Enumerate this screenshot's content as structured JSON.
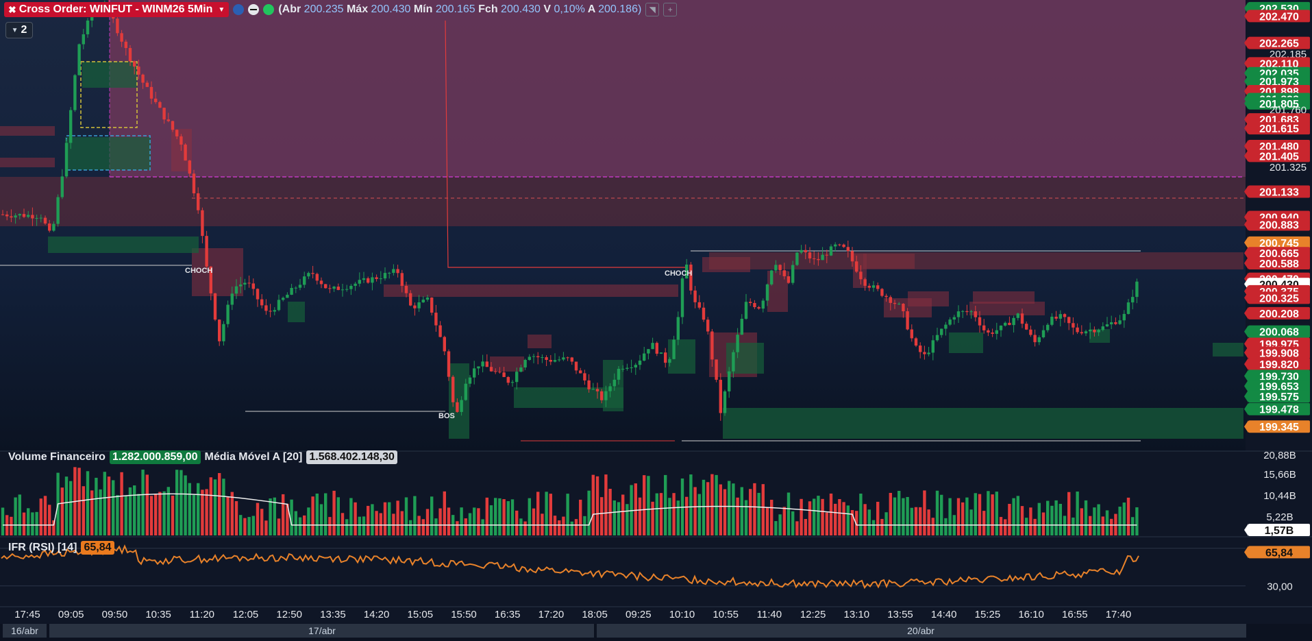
{
  "header": {
    "cross_order_label": "Cross Order: WINFUT - WINM26 5Min",
    "ohlc_text": {
      "abr_label": "(Abr",
      "abr": "200.235",
      "max_label": "Máx",
      "max": "200.430",
      "min_label": "Mín",
      "min": "200.165",
      "fch_label": "Fch",
      "fch": "200.430",
      "var_label": "V",
      "var": "0,10%",
      "a_label": "A",
      "a": "200.186)"
    },
    "layer_count": "2"
  },
  "colors": {
    "bg": "#0f1626",
    "up": "#1f9d55",
    "down": "#e23b3b",
    "zone_red": "#8b2f3f",
    "zone_green": "#17603a",
    "rsi": "#e8822a",
    "ma": "#f0f0f0"
  },
  "chart_data": [
    {
      "type": "candlestick",
      "title": "Cross Order: WINFUT - WINM26 5Min",
      "y_range": [
        199.2,
        202.55
      ],
      "annotations": [
        {
          "text": "CHOCH",
          "x_label": "11:20"
        },
        {
          "text": "CHOCH",
          "x_label": "10:10"
        },
        {
          "text": "BOS",
          "x_label": "15:50"
        }
      ],
      "last_price": "200.430",
      "price_labels": [
        {
          "value": 202.53,
          "text": "202.530",
          "kind": "green"
        },
        {
          "value": 202.47,
          "text": "202.470",
          "kind": "red"
        },
        {
          "value": 202.265,
          "text": "202.265",
          "kind": "red"
        },
        {
          "value": 202.185,
          "text": "202.185",
          "kind": "plain"
        },
        {
          "value": 202.11,
          "text": "202.110",
          "kind": "red"
        },
        {
          "value": 202.035,
          "text": "202.035",
          "kind": "green"
        },
        {
          "value": 201.973,
          "text": "201.973",
          "kind": "green"
        },
        {
          "value": 201.898,
          "text": "201.898",
          "kind": "red"
        },
        {
          "value": 201.838,
          "text": "201.838",
          "kind": "green"
        },
        {
          "value": 201.805,
          "text": "201.805",
          "kind": "green"
        },
        {
          "value": 201.76,
          "text": "201.760",
          "kind": "plain"
        },
        {
          "value": 201.683,
          "text": "201.683",
          "kind": "red"
        },
        {
          "value": 201.615,
          "text": "201.615",
          "kind": "red"
        },
        {
          "value": 201.48,
          "text": "201.480",
          "kind": "red"
        },
        {
          "value": 201.405,
          "text": "201.405",
          "kind": "red"
        },
        {
          "value": 201.325,
          "text": "201.325",
          "kind": "plain"
        },
        {
          "value": 201.133,
          "text": "201.133",
          "kind": "red"
        },
        {
          "value": 200.94,
          "text": "200.940",
          "kind": "red"
        },
        {
          "value": 200.883,
          "text": "200.883",
          "kind": "red"
        },
        {
          "value": 200.745,
          "text": "200.745",
          "kind": "orange"
        },
        {
          "value": 200.665,
          "text": "200.665",
          "kind": "red"
        },
        {
          "value": 200.588,
          "text": "200.588",
          "kind": "red"
        },
        {
          "value": 200.47,
          "text": "200.470",
          "kind": "red"
        },
        {
          "value": 200.43,
          "text": "200.430",
          "kind": "last"
        },
        {
          "value": 200.375,
          "text": "200.375",
          "kind": "red"
        },
        {
          "value": 200.325,
          "text": "200.325",
          "kind": "red"
        },
        {
          "value": 200.208,
          "text": "200.208",
          "kind": "red"
        },
        {
          "value": 200.068,
          "text": "200.068",
          "kind": "green"
        },
        {
          "value": 199.975,
          "text": "199.975",
          "kind": "red"
        },
        {
          "value": 199.908,
          "text": "199.908",
          "kind": "red"
        },
        {
          "value": 199.82,
          "text": "199.820",
          "kind": "red"
        },
        {
          "value": 199.73,
          "text": "199.730",
          "kind": "green"
        },
        {
          "value": 199.653,
          "text": "199.653",
          "kind": "green"
        },
        {
          "value": 199.575,
          "text": "199.575",
          "kind": "green"
        },
        {
          "value": 199.478,
          "text": "199.478",
          "kind": "green"
        },
        {
          "value": 199.345,
          "text": "199.345",
          "kind": "orange"
        }
      ]
    },
    {
      "type": "bar",
      "title": "Volume Financeiro",
      "current_value": "1.282.000.859,00",
      "ma_label": "Média Móvel A [20]",
      "ma_value": "1.568.402.148,30",
      "y_ticks": [
        "20,88B",
        "15,66B",
        "10,44B",
        "5,22B"
      ],
      "last_label": "1,57B"
    },
    {
      "type": "line",
      "title": "IFR (RSI) [14]",
      "current_value": "65,84",
      "y_ticks": [
        "30,00"
      ],
      "last_label": "65,84"
    }
  ],
  "x_axis": {
    "time_labels": [
      "17:45",
      "09:05",
      "09:50",
      "10:35",
      "11:20",
      "12:05",
      "12:50",
      "13:35",
      "14:20",
      "15:05",
      "15:50",
      "16:35",
      "17:20",
      "18:05",
      "09:25",
      "10:10",
      "10:55",
      "11:40",
      "12:25",
      "13:10",
      "13:55",
      "14:40",
      "15:25",
      "16:10",
      "16:55",
      "17:40"
    ],
    "date_labels": [
      "16/abr",
      "17/abr",
      "20/abr"
    ]
  }
}
